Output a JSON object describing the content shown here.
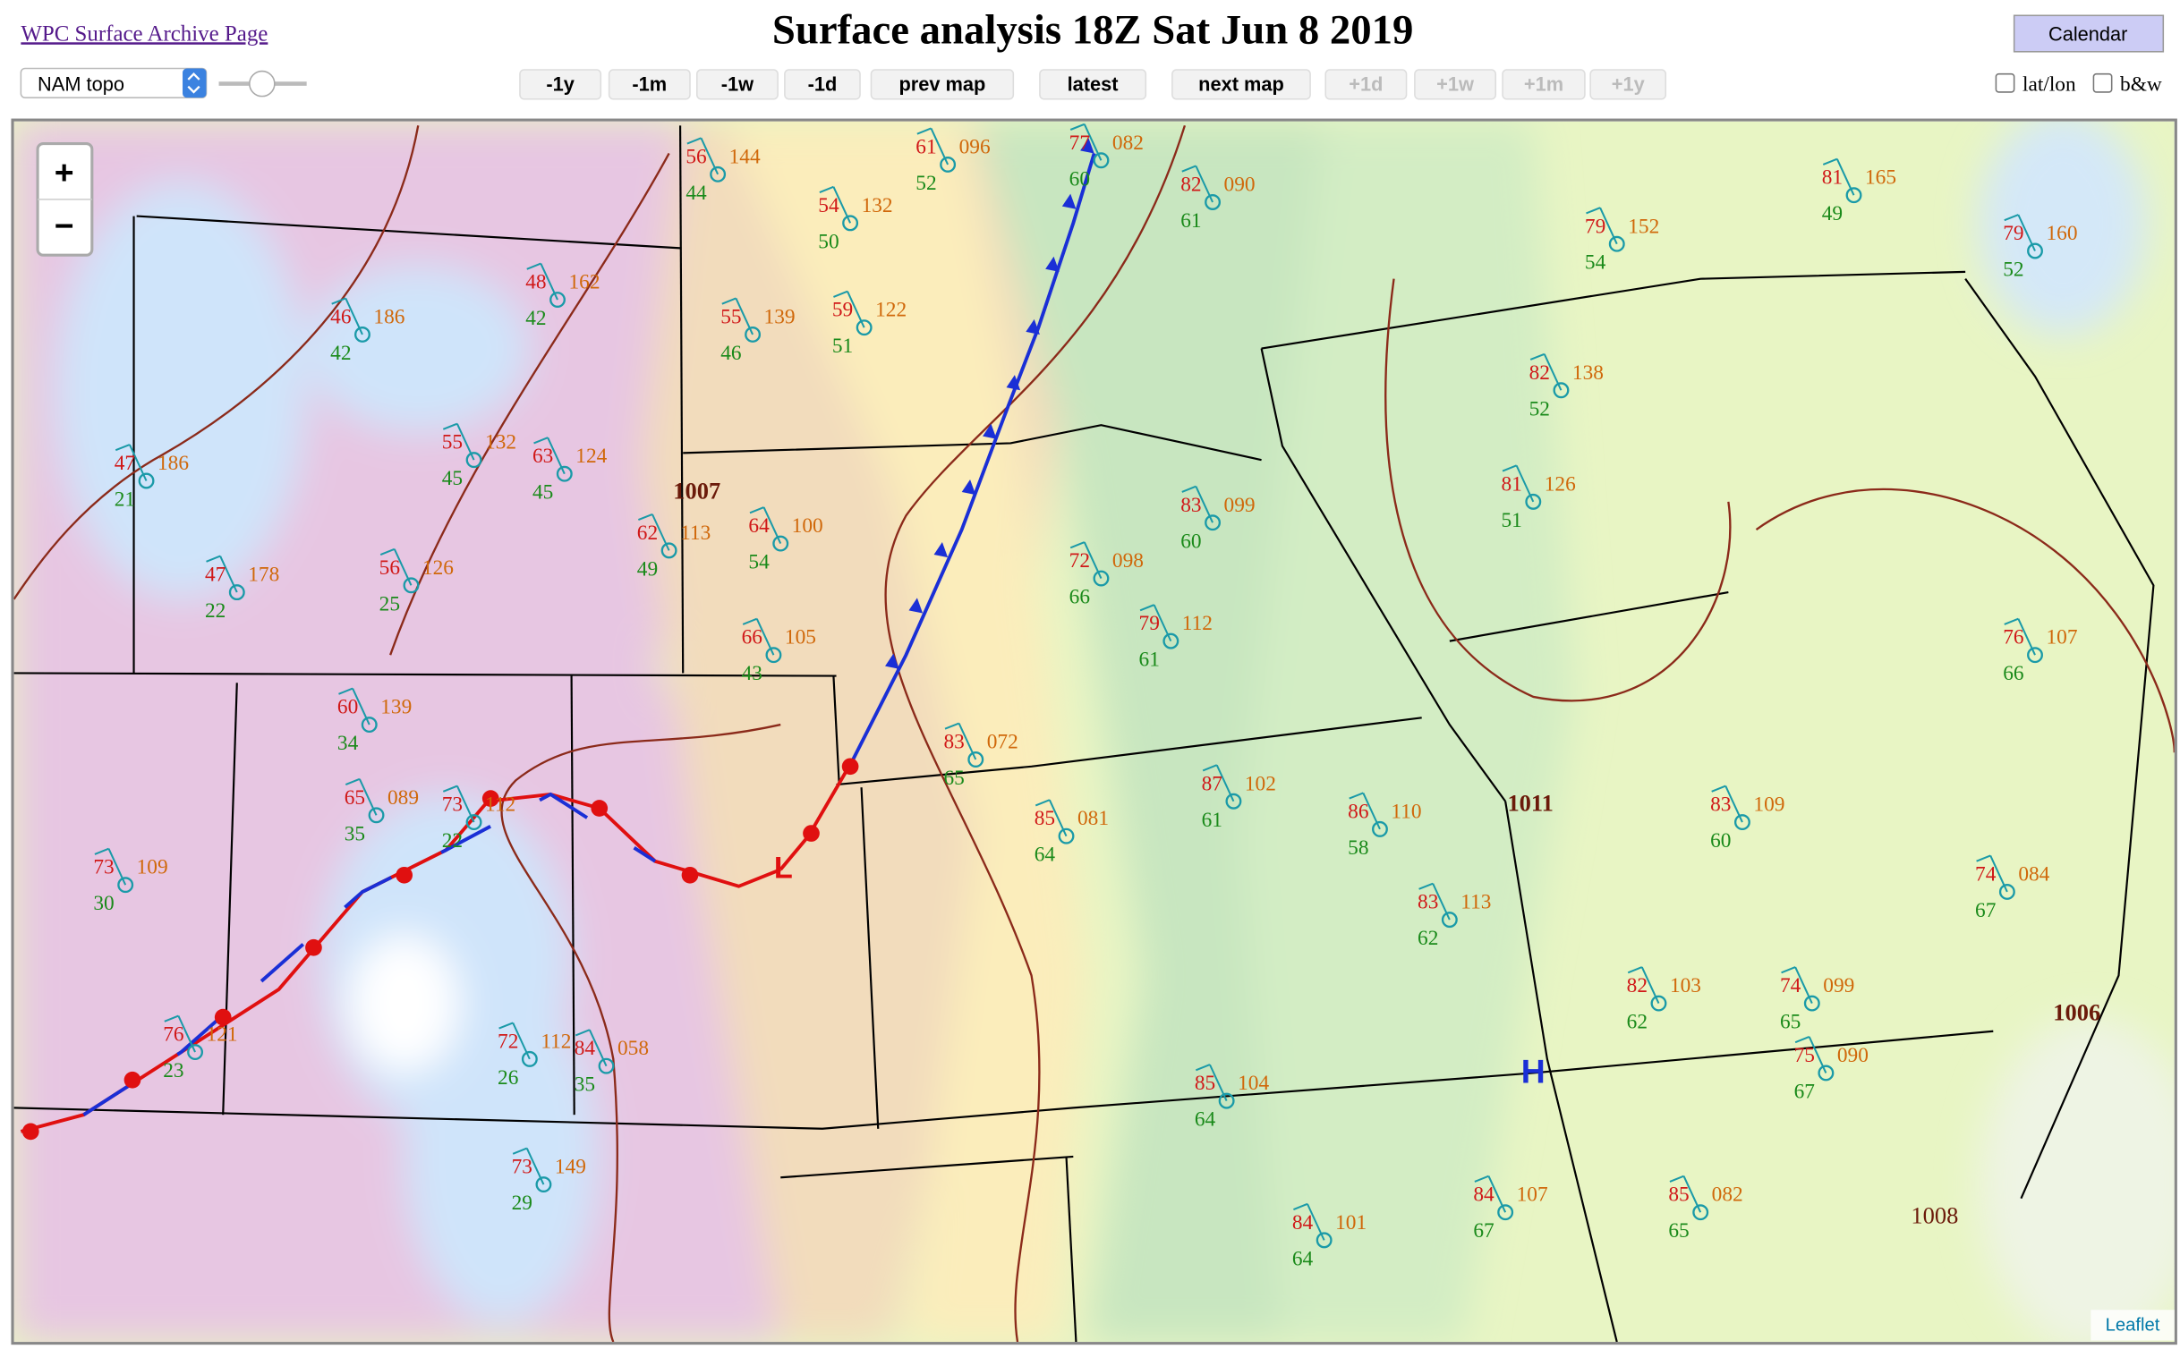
{
  "header": {
    "link": "WPC Surface Archive Page",
    "title": "Surface analysis 18Z Sat Jun 8 2019",
    "calendar": "Calendar"
  },
  "controls": {
    "layer": "NAM topo",
    "buttons": [
      "-1y",
      "-1m",
      "-1w",
      "-1d",
      "prev map",
      "latest",
      "next map",
      "+1d",
      "+1w",
      "+1m",
      "+1y"
    ],
    "checkboxes": [
      "lat/lon",
      "b&w"
    ]
  },
  "map": {
    "zoom": [
      "+",
      "−"
    ],
    "attribution": "Leaflet",
    "centers": [
      "L",
      "H"
    ],
    "isobars": [
      "1007",
      "1011",
      "1006",
      "1008"
    ],
    "stations": [
      {
        "t": "56",
        "p": "144",
        "td": "44"
      },
      {
        "t": "61",
        "p": "096",
        "td": "52"
      },
      {
        "t": "77",
        "p": "082",
        "td": "60"
      },
      {
        "t": "82",
        "p": "090",
        "td": "61"
      },
      {
        "t": "54",
        "p": "132",
        "td": "50"
      },
      {
        "t": "55",
        "p": "139",
        "td": "46"
      },
      {
        "t": "59",
        "p": "122",
        "td": "51"
      },
      {
        "t": "48",
        "p": "162",
        "td": "42"
      },
      {
        "t": "46",
        "p": "186",
        "td": "42"
      },
      {
        "t": "47",
        "p": "186",
        "td": "21"
      },
      {
        "t": "55",
        "p": "132",
        "td": "45"
      },
      {
        "t": "63",
        "p": "124",
        "td": "45"
      },
      {
        "t": "64",
        "p": "100",
        "td": "54"
      },
      {
        "t": "62",
        "p": "113",
        "td": "49"
      },
      {
        "t": "56",
        "p": "126",
        "td": "25"
      },
      {
        "t": "47",
        "p": "178",
        "td": "22"
      },
      {
        "t": "72",
        "p": "098",
        "td": "66"
      },
      {
        "t": "83",
        "p": "099",
        "td": "60"
      },
      {
        "t": "79",
        "p": "112",
        "td": "61"
      },
      {
        "t": "66",
        "p": "105",
        "td": "43"
      },
      {
        "t": "60",
        "p": "139",
        "td": "34"
      },
      {
        "t": "65",
        "p": "089",
        "td": "35"
      },
      {
        "t": "73",
        "p": "112",
        "td": "22"
      },
      {
        "t": "83",
        "p": "072",
        "td": "65"
      },
      {
        "t": "85",
        "p": "081",
        "td": "64"
      },
      {
        "t": "87",
        "p": "102",
        "td": "61"
      },
      {
        "t": "86",
        "p": "110",
        "td": "58"
      },
      {
        "t": "83",
        "p": "113",
        "td": "62"
      },
      {
        "t": "83",
        "p": "109",
        "td": "60"
      },
      {
        "t": "82",
        "p": "138",
        "td": "52"
      },
      {
        "t": "81",
        "p": "165",
        "td": "49"
      },
      {
        "t": "79",
        "p": "160",
        "td": "52"
      },
      {
        "t": "79",
        "p": "152",
        "td": "54"
      },
      {
        "t": "81",
        "p": "126",
        "td": "51"
      },
      {
        "t": "76",
        "p": "107",
        "td": "66"
      },
      {
        "t": "75",
        "p": "090",
        "td": "67"
      },
      {
        "t": "74",
        "p": "084",
        "td": "67"
      },
      {
        "t": "82",
        "p": "103",
        "td": "62"
      },
      {
        "t": "74",
        "p": "099",
        "td": "65"
      },
      {
        "t": "85",
        "p": "104",
        "td": "64"
      },
      {
        "t": "73",
        "p": "149",
        "td": "29"
      },
      {
        "t": "73",
        "p": "109",
        "td": "30"
      },
      {
        "t": "84",
        "p": "058",
        "td": "35"
      },
      {
        "t": "76",
        "p": "121",
        "td": "23"
      },
      {
        "t": "72",
        "p": "112",
        "td": "26"
      },
      {
        "t": "84",
        "p": "107",
        "td": "67"
      },
      {
        "t": "85",
        "p": "082",
        "td": "65"
      },
      {
        "t": "84",
        "p": "101",
        "td": "64"
      }
    ]
  }
}
